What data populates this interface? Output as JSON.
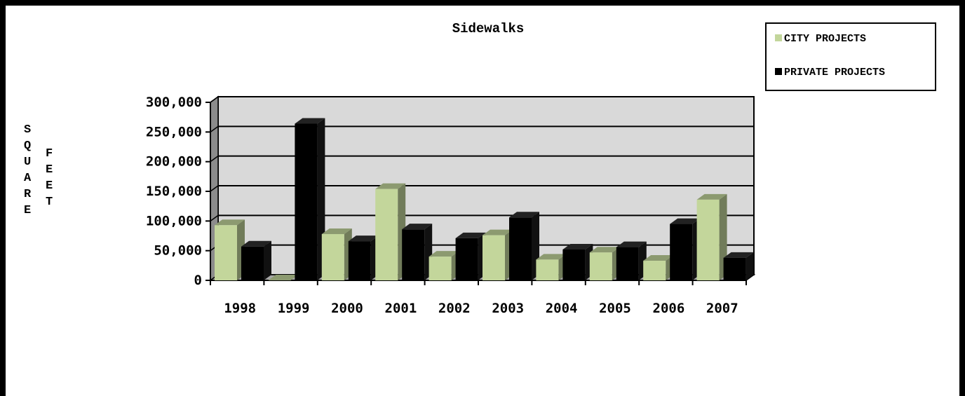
{
  "chart_data": {
    "type": "bar",
    "title": "Sidewalks",
    "ylabel": [
      "S",
      "Q",
      "U",
      "A",
      "R",
      "E",
      "F",
      "E",
      "E",
      "T"
    ],
    "ylabel_word1": "SQUARE",
    "ylabel_word2": "FEET",
    "xlabel": "",
    "categories": [
      "1998",
      "1999",
      "2000",
      "2001",
      "2002",
      "2003",
      "2004",
      "2005",
      "2006",
      "2007"
    ],
    "ylim": [
      0,
      300000
    ],
    "yticks": [
      0,
      50000,
      100000,
      150000,
      200000,
      250000,
      300000
    ],
    "ytick_labels": [
      "0",
      "50,000",
      "100,000",
      "150,000",
      "200,000",
      "250,000",
      "300,000"
    ],
    "grid": true,
    "legend_position": "top-right",
    "series": [
      {
        "name": "CITY PROJECTS",
        "color": "#c3d69b",
        "values": [
          93000,
          0,
          78000,
          154000,
          40000,
          76000,
          35000,
          47000,
          33000,
          136000
        ]
      },
      {
        "name": "PRIVATE PROJECTS",
        "color": "#000000",
        "values": [
          57000,
          264000,
          66000,
          86000,
          71000,
          106000,
          52000,
          56000,
          95000,
          38000
        ]
      }
    ],
    "style": {
      "plot_background": "#d9d9d9"
    }
  }
}
